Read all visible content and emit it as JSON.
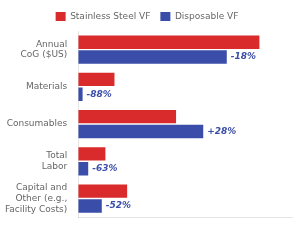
{
  "chart_data": {
    "type": "bar",
    "orientation": "horizontal",
    "categories": [
      "Annual\nCoG ($US)",
      "Materials",
      "Consumables",
      "Total\nLabor",
      "Capital and\nOther (e.g.,\nFacility Costs)"
    ],
    "series": [
      {
        "name": "Stainless Steel VF",
        "color": "#d92b2b",
        "values": [
          100,
          20,
          54,
          15,
          27
        ]
      },
      {
        "name": "Disposable VF",
        "color": "#3a4da8",
        "values": [
          82,
          2.4,
          69,
          5.5,
          13
        ]
      }
    ],
    "annotations": [
      {
        "text": "-18%",
        "category": "Annual\nCoG ($US)",
        "series": "Disposable VF"
      },
      {
        "text": "-88%",
        "category": "Materials",
        "series": "Disposable VF"
      },
      {
        "text": "+28%",
        "category": "Consumables",
        "series": "Disposable VF"
      },
      {
        "text": "-63%",
        "category": "Total\nLabor",
        "series": "Disposable VF"
      },
      {
        "text": "-52%",
        "category": "Capital and\nOther (e.g.,\nFacility Costs)",
        "series": "Disposable VF"
      }
    ],
    "xlim": [
      0,
      118
    ],
    "grid": false,
    "legend": "top",
    "tick_labels": "y"
  }
}
